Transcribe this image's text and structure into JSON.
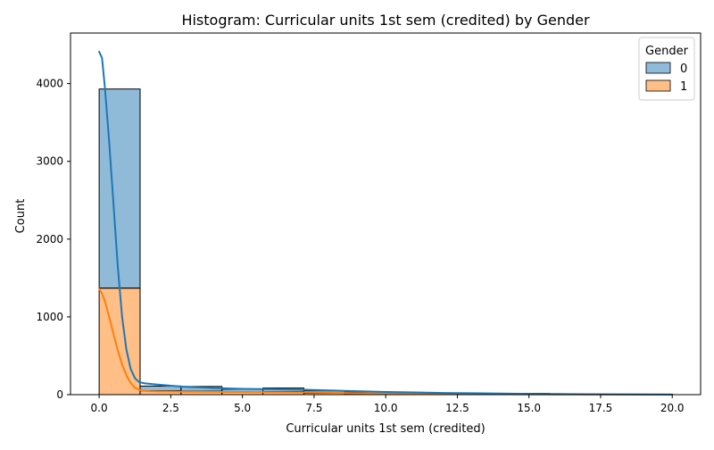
{
  "chart_data": {
    "type": "histogram",
    "title": "Histogram: Curricular units 1st sem (credited) by Gender",
    "xlabel": "Curricular units 1st sem (credited)",
    "ylabel": "Count",
    "xlim": [
      -1,
      20.99
    ],
    "ylim": [
      0,
      4650
    ],
    "x_ticks": [
      0.0,
      2.5,
      5.0,
      7.5,
      10.0,
      12.5,
      15.0,
      17.5,
      20.0
    ],
    "x_tick_labels": [
      "0.0",
      "2.5",
      "5.0",
      "7.5",
      "10.0",
      "12.5",
      "15.0",
      "17.5",
      "20.0"
    ],
    "y_ticks": [
      0,
      1000,
      2000,
      3000,
      4000
    ],
    "y_tick_labels": [
      "0",
      "1000",
      "2000",
      "3000",
      "4000"
    ],
    "stacked": true,
    "legend": {
      "title": "Gender",
      "placement": "top-right",
      "entries": [
        "0",
        "1"
      ]
    },
    "bin_edges": [
      0.0,
      1.4286,
      2.8571,
      4.2857,
      5.7143,
      7.1429,
      8.5714,
      10.0,
      11.4286,
      12.8571,
      14.2857,
      15.7143,
      17.1429,
      18.5714,
      20.0
    ],
    "series": [
      {
        "name": "1",
        "color": "#ff7f0e",
        "values": [
          1370,
          50,
          45,
          30,
          40,
          20,
          15,
          10,
          8,
          6,
          4,
          2,
          1,
          1
        ],
        "kde_x": [
          0,
          0.1,
          0.2,
          0.35,
          0.5,
          0.65,
          0.8,
          0.95,
          1.1,
          1.25,
          1.4,
          1.6,
          1.8,
          2.0,
          2.5,
          3.0,
          4.0,
          5.0,
          6.0,
          7.0,
          8.0,
          9.0,
          10.0,
          11.0,
          12.0,
          13.0,
          14.0,
          15.0,
          16.0,
          17.0,
          18.0,
          19.0,
          20.0
        ],
        "kde_y": [
          1360,
          1300,
          1200,
          1000,
          780,
          570,
          390,
          250,
          150,
          90,
          60,
          48,
          44,
          42,
          40,
          38,
          36,
          34,
          32,
          30,
          24,
          18,
          14,
          11,
          9,
          7,
          5,
          4,
          3,
          2,
          2,
          1,
          1
        ]
      },
      {
        "name": "0",
        "color": "#1f77b4",
        "values": [
          2560,
          60,
          60,
          40,
          45,
          30,
          20,
          15,
          10,
          8,
          12,
          4,
          2,
          1
        ],
        "kde_x": [
          0,
          0.1,
          0.2,
          0.35,
          0.5,
          0.65,
          0.8,
          0.95,
          1.1,
          1.25,
          1.4,
          1.6,
          1.8,
          2.0,
          2.5,
          3.0,
          4.0,
          5.0,
          6.0,
          7.0,
          8.0,
          9.0,
          10.0,
          11.0,
          12.0,
          13.0,
          14.0,
          15.0,
          16.0,
          17.0,
          18.0,
          19.0,
          20.0
        ],
        "kde_y": [
          4410,
          4330,
          3950,
          3250,
          2450,
          1650,
          1000,
          580,
          330,
          210,
          160,
          145,
          138,
          130,
          115,
          100,
          85,
          75,
          70,
          65,
          55,
          45,
          35,
          28,
          22,
          18,
          14,
          10,
          8,
          6,
          4,
          3,
          2
        ]
      }
    ]
  }
}
